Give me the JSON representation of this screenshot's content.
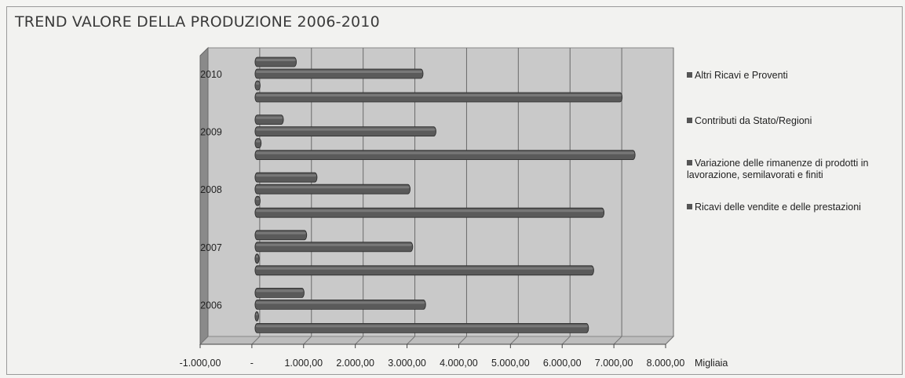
{
  "chart_data": {
    "type": "bar",
    "orientation": "horizontal",
    "title": "TREND VALORE DELLA PRODUZIONE 2006-2010",
    "xlabel": "Migliaia",
    "xlim": [
      -1000,
      8000
    ],
    "x_ticks": [
      "-1.000,00",
      "-",
      "1.000,00",
      "2.000,00",
      "3.000,00",
      "4.000,00",
      "5.000,00",
      "6.000,00",
      "7.000,00",
      "8.000,00"
    ],
    "categories": [
      "2010",
      "2009",
      "2008",
      "2007",
      "2006"
    ],
    "series": [
      {
        "name": "Altri Ricavi e Proventi",
        "values": [
          800,
          550,
          1200,
          1000,
          950
        ]
      },
      {
        "name": "Contributi da Stato/Regioni",
        "values": [
          3250,
          3500,
          3000,
          3050,
          3300
        ]
      },
      {
        "name": "Variazione delle rimanenze di prodotti in lavorazione, semilavorati e finiti",
        "values": [
          100,
          120,
          100,
          80,
          70
        ]
      },
      {
        "name": "Ricavi delle vendite e delle prestazioni",
        "values": [
          7100,
          7350,
          6750,
          6550,
          6450
        ]
      }
    ],
    "legend_position": "right",
    "grid": true,
    "colors": {
      "bar": "#5a5a5a",
      "plot_bg": "#c9c9c9",
      "wall": "#8a8a8a"
    }
  }
}
